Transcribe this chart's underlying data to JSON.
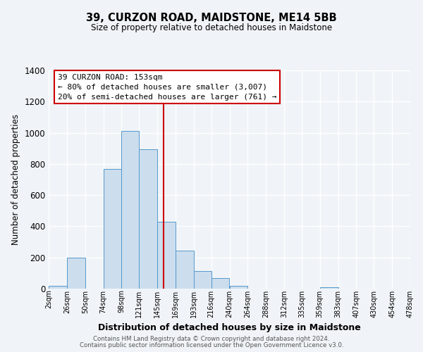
{
  "title": "39, CURZON ROAD, MAIDSTONE, ME14 5BB",
  "subtitle": "Size of property relative to detached houses in Maidstone",
  "xlabel": "Distribution of detached houses by size in Maidstone",
  "ylabel": "Number of detached properties",
  "bar_color": "#ccdded",
  "bar_edge_color": "#5599cc",
  "background_color": "#f0f4f8",
  "grid_color": "#ffffff",
  "vline_x": 153,
  "vline_color": "#cc0000",
  "annotation_title": "39 CURZON ROAD: 153sqm",
  "annotation_line1": "← 80% of detached houses are smaller (3,007)",
  "annotation_line2": "20% of semi-detached houses are larger (761) →",
  "annotation_box_color": "#ffffff",
  "annotation_box_edge": "#cc0000",
  "bins": [
    2,
    26,
    50,
    74,
    98,
    121,
    145,
    169,
    193,
    216,
    240,
    264,
    288,
    312,
    335,
    359,
    383,
    407,
    430,
    454,
    478
  ],
  "counts": [
    20,
    200,
    0,
    770,
    1010,
    895,
    430,
    245,
    115,
    70,
    20,
    0,
    0,
    0,
    0,
    10,
    0,
    0,
    0,
    0
  ],
  "ylim": [
    0,
    1400
  ],
  "yticks": [
    0,
    200,
    400,
    600,
    800,
    1000,
    1200,
    1400
  ],
  "tick_labels": [
    "2sqm",
    "26sqm",
    "50sqm",
    "74sqm",
    "98sqm",
    "121sqm",
    "145sqm",
    "169sqm",
    "193sqm",
    "216sqm",
    "240sqm",
    "264sqm",
    "288sqm",
    "312sqm",
    "335sqm",
    "359sqm",
    "383sqm",
    "407sqm",
    "430sqm",
    "454sqm",
    "478sqm"
  ],
  "footer1": "Contains HM Land Registry data © Crown copyright and database right 2024.",
  "footer2": "Contains public sector information licensed under the Open Government Licence v3.0."
}
